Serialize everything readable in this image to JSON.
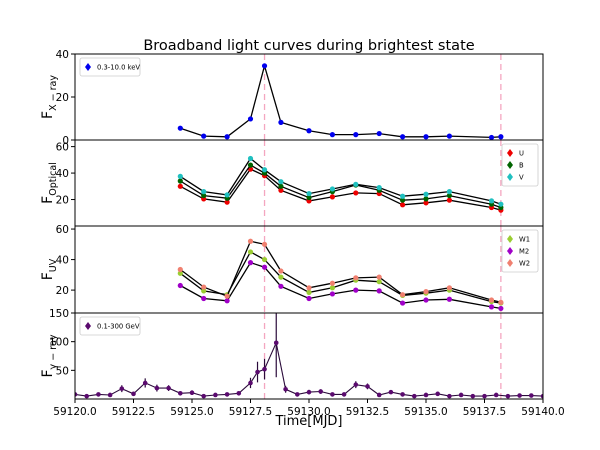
{
  "chart_data": {
    "type": "line",
    "title": "Broadband light curves during brightest state",
    "xlabel": "Time[MJD]",
    "xlim": [
      59120.0,
      59140.0
    ],
    "xticks": [
      59120.0,
      59122.5,
      59125.0,
      59127.5,
      59130.0,
      59132.5,
      59135.0,
      59137.5,
      59140.0
    ],
    "xtick_labels": [
      "59120.0",
      "59122.5",
      "59125.0",
      "59127.5",
      "59130.0",
      "59132.5",
      "59135.0",
      "59137.5",
      "59140.0"
    ],
    "vlines": [
      59128.1,
      59138.2
    ],
    "panels": [
      {
        "ylabel_main": "F",
        "ylabel_sub": "X − ray",
        "ylim": [
          0,
          40
        ],
        "yticks": [
          0,
          20,
          40
        ],
        "ytick_labels": [
          "0",
          "20",
          "40"
        ],
        "legend_position": "top-left",
        "series": [
          {
            "name": "0.3-10.0 keV",
            "color": "#0000ee",
            "x": [
              59124.5,
              59125.5,
              59126.5,
              59127.5,
              59128.1,
              59128.8,
              59130.0,
              59131.0,
              59132.0,
              59133.0,
              59134.0,
              59135.0,
              59136.0,
              59137.8,
              59138.2
            ],
            "y": [
              5.5,
              1.8,
              1.5,
              9.8,
              34.5,
              8.2,
              4.3,
              2.5,
              2.5,
              3.0,
              1.5,
              1.5,
              1.8,
              1.2,
              1.5
            ]
          }
        ]
      },
      {
        "ylabel_main": "F",
        "ylabel_sub": "Optical",
        "ylim": [
          0,
          65
        ],
        "yticks": [
          20,
          40,
          60
        ],
        "ytick_labels": [
          "20",
          "40",
          "60"
        ],
        "legend_position": "top-right",
        "series": [
          {
            "name": "U",
            "color": "#ee0000",
            "x": [
              59124.5,
              59125.5,
              59126.5,
              59127.5,
              59128.1,
              59128.8,
              59130.0,
              59131.0,
              59132.0,
              59133.0,
              59134.0,
              59135.0,
              59136.0,
              59137.8,
              59138.2
            ],
            "y": [
              30,
              20.5,
              18,
              43,
              38,
              27,
              19,
              22,
              25,
              24.5,
              16,
              17.5,
              19.5,
              14,
              12
            ]
          },
          {
            "name": "B",
            "color": "#006400",
            "x": [
              59124.5,
              59125.5,
              59126.5,
              59127.5,
              59128.1,
              59128.8,
              59130.0,
              59131.0,
              59132.0,
              59133.0,
              59134.0,
              59135.0,
              59136.0,
              59137.8,
              59138.2
            ],
            "y": [
              34,
              23,
              21,
              46,
              40,
              30,
              21.5,
              26,
              31,
              27,
              19.5,
              20.5,
              23,
              16.5,
              14
            ]
          },
          {
            "name": "V",
            "color": "#20c0c0",
            "x": [
              59124.5,
              59125.5,
              59126.5,
              59127.5,
              59128.1,
              59128.8,
              59130.0,
              59131.0,
              59132.0,
              59133.0,
              59134.0,
              59135.0,
              59136.0,
              59137.8,
              59138.2
            ],
            "y": [
              37.5,
              26,
              23.5,
              51,
              42.5,
              33.5,
              24.5,
              28,
              31.5,
              29,
              22.5,
              24,
              26,
              19,
              16.5
            ]
          }
        ]
      },
      {
        "ylabel_main": "F",
        "ylabel_sub": "UV",
        "ylim": [
          5,
          62
        ],
        "yticks": [
          20,
          40,
          60
        ],
        "ytick_labels": [
          "20",
          "40",
          "60"
        ],
        "legend_position": "top-right",
        "series": [
          {
            "name": "W1",
            "color": "#9acd32",
            "x": [
              59124.5,
              59125.5,
              59126.5,
              59127.5,
              59128.1,
              59128.8,
              59130.0,
              59131.0,
              59132.0,
              59133.0,
              59134.0,
              59135.0,
              59136.0,
              59137.8,
              59138.2
            ],
            "y": [
              31,
              19.5,
              17,
              45,
              40,
              28.5,
              18.5,
              21.5,
              26.5,
              25.5,
              16.5,
              18,
              20,
              12.5,
              11.5
            ]
          },
          {
            "name": "M2",
            "color": "#a000c8",
            "x": [
              59124.5,
              59125.5,
              59126.5,
              59127.5,
              59128.1,
              59128.8,
              59130.0,
              59131.0,
              59132.0,
              59133.0,
              59134.0,
              59135.0,
              59136.0,
              59137.8,
              59138.2
            ],
            "y": [
              23,
              14.5,
              13,
              38,
              35,
              22.5,
              14.5,
              17.5,
              20,
              19.5,
              11.5,
              13.5,
              14,
              9,
              8
            ]
          },
          {
            "name": "W2",
            "color": "#f08070",
            "x": [
              59124.5,
              59125.5,
              59126.5,
              59127.5,
              59128.1,
              59128.8,
              59130.0,
              59131.0,
              59132.0,
              59133.0,
              59134.0,
              59135.0,
              59136.0,
              59137.8,
              59138.2
            ],
            "y": [
              33.5,
              22,
              16,
              52,
              50,
              32.5,
              21.5,
              24.5,
              28,
              28.5,
              17,
              19,
              21.5,
              13.5,
              12
            ]
          }
        ]
      },
      {
        "ylabel_main": "F",
        "ylabel_sub": "γ − ray",
        "ylim": [
          0,
          150
        ],
        "yticks": [
          50,
          100,
          150
        ],
        "ytick_labels": [
          "50",
          "100",
          "150"
        ],
        "legend_position": "top-left",
        "series": [
          {
            "name": "0.1-300 GeV",
            "color": "#5a0a6e",
            "x": [
              59120.0,
              59120.5,
              59121.0,
              59121.5,
              59122.0,
              59122.5,
              59123.0,
              59123.5,
              59124.0,
              59124.5,
              59125.0,
              59125.5,
              59126.0,
              59126.5,
              59127.0,
              59127.5,
              59127.8,
              59128.1,
              59128.6,
              59129.0,
              59129.5,
              59130.0,
              59130.5,
              59131.0,
              59131.5,
              59132.0,
              59132.5,
              59133.0,
              59133.5,
              59134.0,
              59134.5,
              59135.0,
              59135.5,
              59136.0,
              59136.5,
              59137.0,
              59137.5,
              59138.0,
              59138.5,
              59139.0,
              59139.5,
              59140.0
            ],
            "y": [
              8,
              5,
              8,
              7,
              18,
              9,
              28,
              19,
              19,
              10,
              11,
              5,
              7,
              8,
              10,
              28,
              47,
              52,
              98,
              17,
              8,
              12,
              13,
              8,
              8,
              25,
              22,
              7,
              12,
              8,
              5,
              7,
              9,
              5,
              7,
              5,
              5,
              7,
              5,
              6,
              6,
              5
            ],
            "err": [
              3,
              3,
              3,
              3,
              6,
              3,
              8,
              6,
              5,
              3,
              4,
              3,
              3,
              3,
              3,
              9,
              18,
              18,
              60,
              6,
              3,
              4,
              4,
              3,
              3,
              6,
              5,
              3,
              3,
              3,
              3,
              3,
              3,
              3,
              3,
              3,
              3,
              3,
              3,
              3,
              3,
              3
            ]
          }
        ]
      }
    ]
  }
}
